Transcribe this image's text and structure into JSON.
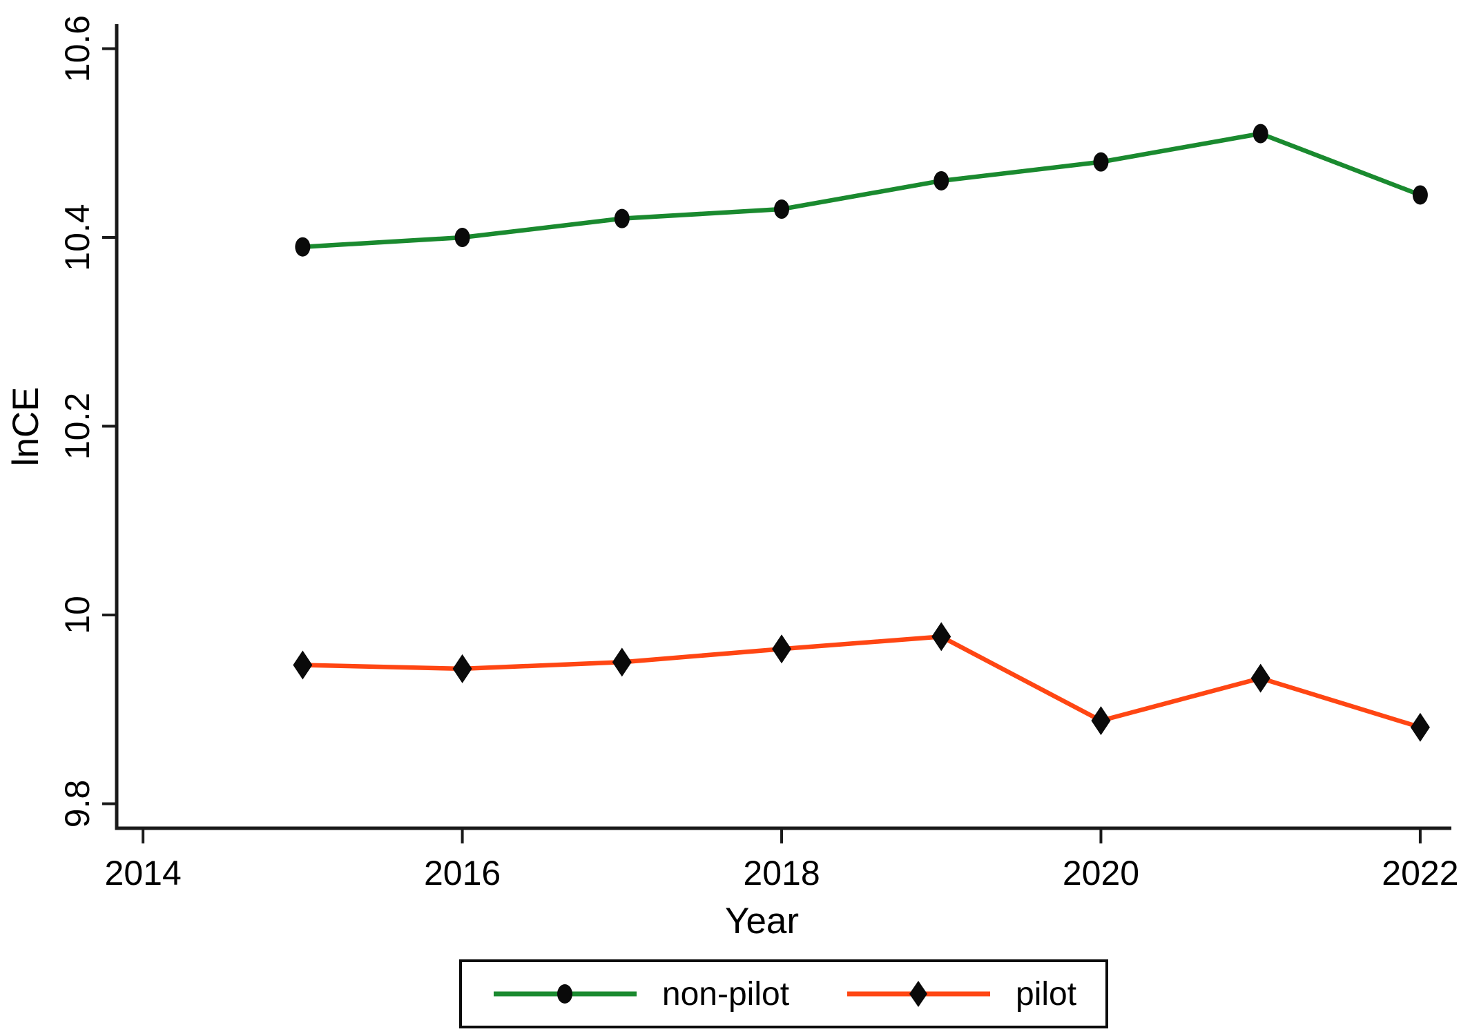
{
  "chart_data": {
    "type": "line",
    "title": "",
    "xlabel": "Year",
    "ylabel": "lnCE",
    "x": [
      2015,
      2016,
      2017,
      2018,
      2019,
      2020,
      2021,
      2022
    ],
    "series": [
      {
        "name": "non-pilot",
        "color": "#1a8a2f",
        "marker": "circle",
        "marker_color": "#0a0a0a",
        "values": [
          10.39,
          10.4,
          10.42,
          10.43,
          10.46,
          10.48,
          10.51,
          10.445
        ]
      },
      {
        "name": "pilot",
        "color": "#ff4613",
        "marker": "diamond",
        "marker_color": "#0a0a0a",
        "values": [
          9.947,
          9.943,
          9.95,
          9.964,
          9.977,
          9.888,
          9.933,
          9.881
        ]
      }
    ],
    "xticks": {
      "values": [
        2014,
        2016,
        2018,
        2020,
        2022
      ],
      "labels": [
        "2014",
        "2016",
        "2018",
        "2020",
        "2022"
      ]
    },
    "yticks": {
      "values": [
        9.8,
        10.0,
        10.2,
        10.4,
        10.6
      ],
      "labels": [
        "9.8",
        "10",
        "10.2",
        "10.4",
        "10.6"
      ]
    },
    "xlim": [
      2013.835,
      2022.195
    ],
    "ylim": [
      9.774,
      10.626
    ],
    "grid": false,
    "legend_position": "bottom-center",
    "axis_color": "#1a1a1a",
    "text_color": "#000000"
  }
}
